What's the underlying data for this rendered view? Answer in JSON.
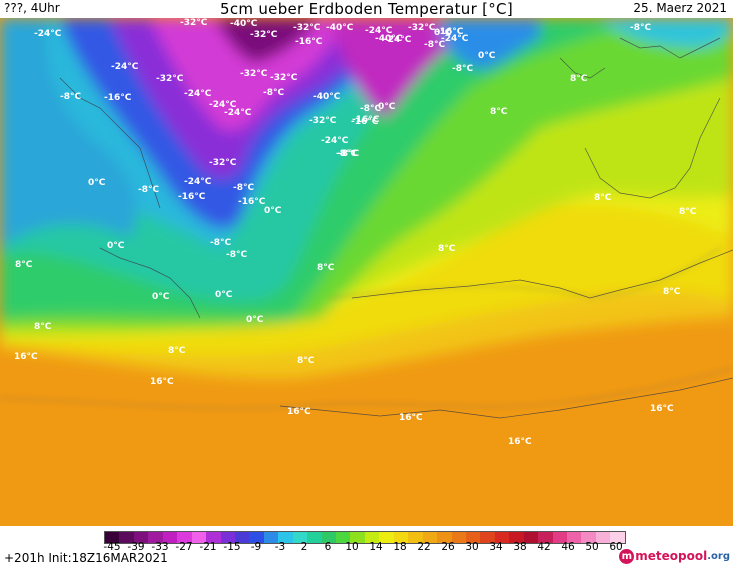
{
  "header": {
    "left": "???, 4Uhr",
    "title": "5cm ueber Erdboden Temperatur [°C]",
    "date": "25. Maerz 2021"
  },
  "map_labels": [
    {
      "text": "-24°C"
    },
    {
      "text": "-40°C"
    },
    {
      "text": "-32°C"
    },
    {
      "text": "-32°C"
    },
    {
      "text": "-40°C"
    },
    {
      "text": "-32°C"
    },
    {
      "text": "-16°C"
    },
    {
      "text": "0°C"
    },
    {
      "text": "-24°C"
    },
    {
      "text": "-8°C"
    },
    {
      "text": "-24°C"
    },
    {
      "text": "-32°C"
    },
    {
      "text": "0°C"
    },
    {
      "text": "-8°C"
    },
    {
      "text": "8°C"
    },
    {
      "text": "-24°C"
    },
    {
      "text": "-32°C"
    },
    {
      "text": "-32°C"
    },
    {
      "text": "-8°C"
    },
    {
      "text": "-24°C"
    },
    {
      "text": "-8°C"
    },
    {
      "text": "-16°C"
    },
    {
      "text": "-24°C"
    },
    {
      "text": "-40°C"
    },
    {
      "text": "-8°C"
    },
    {
      "text": "0°C"
    },
    {
      "text": "-32°C"
    },
    {
      "text": "-16°C"
    },
    {
      "text": "8°C"
    },
    {
      "text": "-24°C"
    },
    {
      "text": "-8°C"
    },
    {
      "text": "-32°C"
    },
    {
      "text": "0°C"
    },
    {
      "text": "-24°C"
    },
    {
      "text": "-8°C"
    },
    {
      "text": "-16°C"
    },
    {
      "text": "-8°C"
    },
    {
      "text": "-16°C"
    },
    {
      "text": "0°C"
    },
    {
      "text": "8°C"
    },
    {
      "text": "0°C"
    },
    {
      "text": "-8°C"
    },
    {
      "text": "8°C"
    },
    {
      "text": "-8°C"
    },
    {
      "text": "8°C"
    },
    {
      "text": "8°C"
    },
    {
      "text": "0°C"
    },
    {
      "text": "0°C"
    },
    {
      "text": "8°C"
    },
    {
      "text": "0°C"
    },
    {
      "text": "8°C"
    },
    {
      "text": "8°C"
    },
    {
      "text": "16°C"
    },
    {
      "text": "8°C"
    },
    {
      "text": "16°C"
    },
    {
      "text": "16°C"
    },
    {
      "text": "16°C"
    },
    {
      "text": "16°C"
    },
    {
      "text": "16°C"
    },
    {
      "text": "-16°C"
    },
    {
      "text": "-8°C"
    },
    {
      "text": "8°C"
    },
    {
      "text": "-24°C"
    },
    {
      "text": "-32°C"
    },
    {
      "text": "-40°C"
    },
    {
      "text": "-24°C"
    },
    {
      "text": "-16°C"
    },
    {
      "text": "-8°C"
    }
  ],
  "legend": {
    "ticks": [
      "-45",
      "-39",
      "-33",
      "-27",
      "-21",
      "-15",
      "-9",
      "-3",
      "2",
      "6",
      "10",
      "14",
      "18",
      "22",
      "26",
      "30",
      "34",
      "38",
      "42",
      "46",
      "50",
      "60"
    ],
    "colors": [
      "#3a0038",
      "#5c0a5c",
      "#7d107d",
      "#a01aa0",
      "#c020c0",
      "#dd3add",
      "#f060e8",
      "#b030d8",
      "#7b2fd8",
      "#4a3bd6",
      "#2e4fe6",
      "#2d8be8",
      "#2cc4e8",
      "#33d8c8",
      "#22d09a",
      "#2ec866",
      "#4cd640",
      "#8ce01e",
      "#c4ec12",
      "#ecec10",
      "#f2d810",
      "#f2be12",
      "#f0a814",
      "#ee9216",
      "#ea7a18",
      "#e6601a",
      "#e0441c",
      "#d82a20",
      "#c81824",
      "#b01030",
      "#c8205a",
      "#e23c86",
      "#ee62aa",
      "#f48ac4",
      "#f8b0d8",
      "#fbd0e8"
    ],
    "init_text": "+201h  Init:18Z16MAR2021"
  },
  "logo": {
    "mark": "m",
    "name": "meteopool",
    "tld": ".org"
  }
}
